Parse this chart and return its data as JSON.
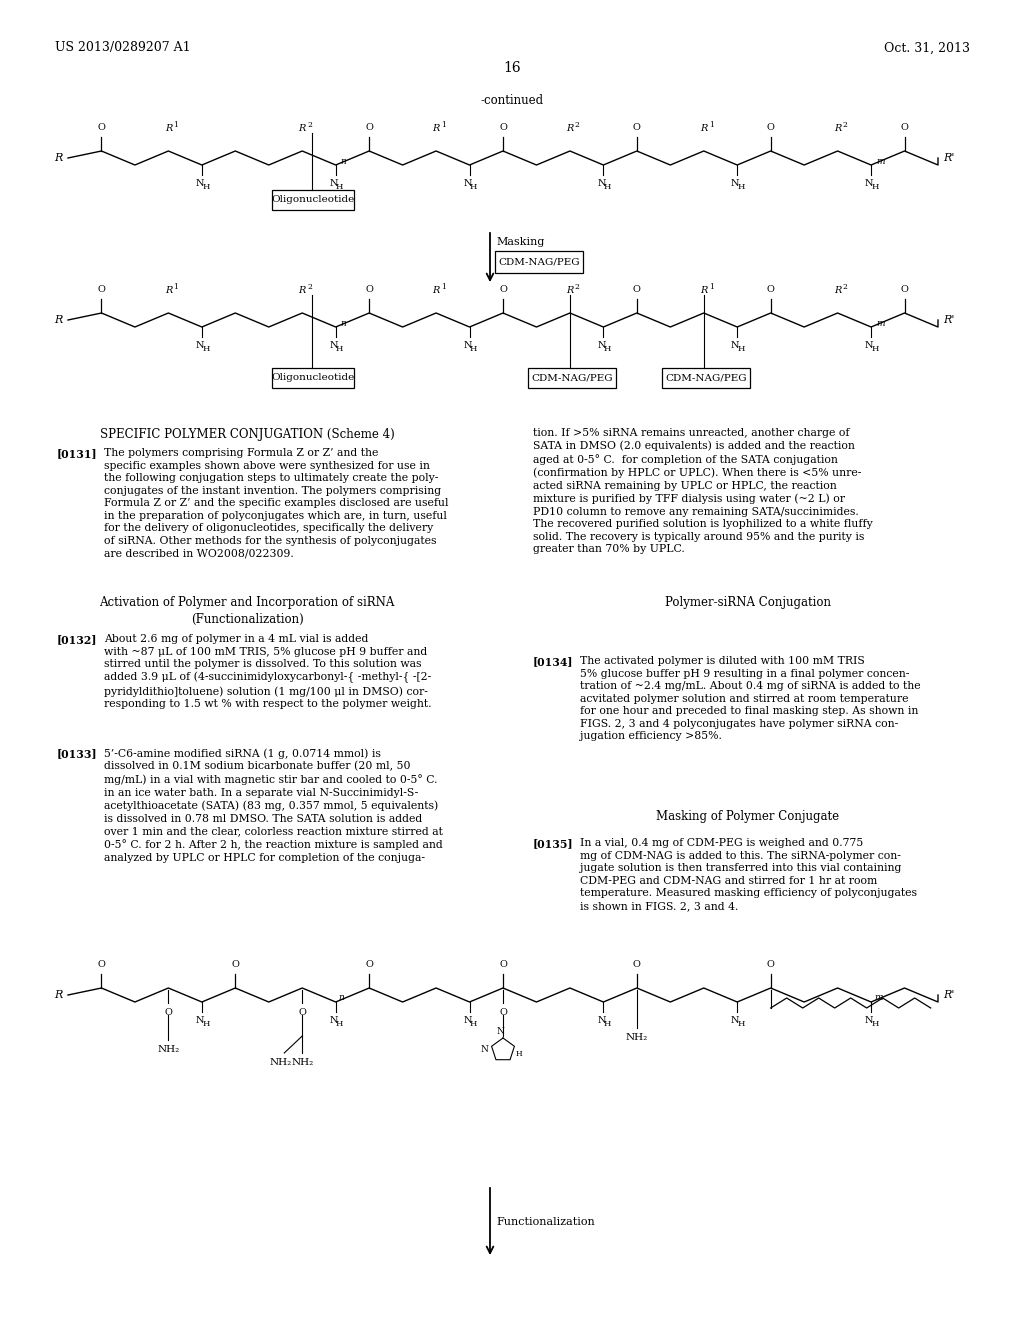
{
  "header_left": "US 2013/0289207 A1",
  "header_right": "Oct. 31, 2013",
  "page_number": "16",
  "continued_label": "-continued",
  "background_color": "#ffffff",
  "text_color": "#000000",
  "heading1": "SPECIFIC POLYMER CONJUGATION (Scheme 4)",
  "para131_label": "[0131]",
  "para132_label": "[0132]",
  "para133_label": "[0133]",
  "para134_label": "[0134]",
  "para135_label": "[0135]"
}
